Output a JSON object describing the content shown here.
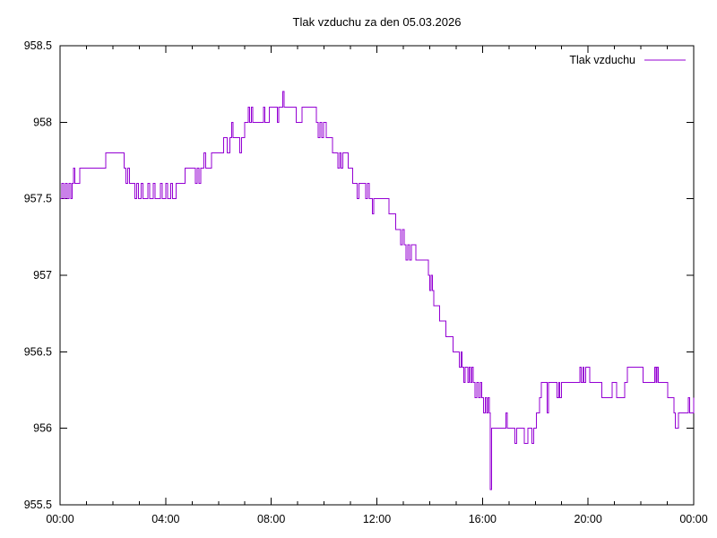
{
  "window": {
    "background_color": "#ffffff",
    "axis_color": "#000000"
  },
  "chart_data": {
    "type": "line",
    "title": "Tlak vzduchu za den 05.03.2026",
    "xlabel": "",
    "ylabel": "",
    "grid": false,
    "legend_position": "top-right-inside",
    "x_axis": {
      "unit": "time HH:MM",
      "min_minutes": 0,
      "max_minutes": 1440,
      "major_tick_minutes": 240,
      "minor_tick_minutes": 60,
      "tick_labels": [
        "00:00",
        "04:00",
        "08:00",
        "12:00",
        "16:00",
        "20:00",
        "00:00"
      ]
    },
    "y_axis": {
      "unit": "hPa",
      "min": 955.5,
      "max": 958.5,
      "tick_step": 0.5,
      "tick_labels": [
        "955.5",
        "956",
        "956.5",
        "957",
        "957.5",
        "958",
        "958.5"
      ]
    },
    "series": [
      {
        "name": "Tlak vzduchu",
        "color": "#9400d3",
        "points": [
          [
            0,
            957.5
          ],
          [
            4,
            957.6
          ],
          [
            8,
            957.5
          ],
          [
            12,
            957.6
          ],
          [
            16,
            957.5
          ],
          [
            20,
            957.6
          ],
          [
            24,
            957.5
          ],
          [
            28,
            957.6
          ],
          [
            31,
            957.7
          ],
          [
            34,
            957.6
          ],
          [
            45,
            957.7
          ],
          [
            100,
            957.7
          ],
          [
            104,
            957.8
          ],
          [
            142,
            957.8
          ],
          [
            146,
            957.7
          ],
          [
            150,
            957.6
          ],
          [
            154,
            957.7
          ],
          [
            158,
            957.6
          ],
          [
            166,
            957.6
          ],
          [
            170,
            957.5
          ],
          [
            174,
            957.6
          ],
          [
            178,
            957.5
          ],
          [
            184,
            957.6
          ],
          [
            188,
            957.5
          ],
          [
            196,
            957.5
          ],
          [
            200,
            957.6
          ],
          [
            204,
            957.5
          ],
          [
            212,
            957.6
          ],
          [
            216,
            957.5
          ],
          [
            224,
            957.5
          ],
          [
            228,
            957.6
          ],
          [
            232,
            957.5
          ],
          [
            240,
            957.6
          ],
          [
            244,
            957.5
          ],
          [
            252,
            957.6
          ],
          [
            256,
            957.5
          ],
          [
            260,
            957.5
          ],
          [
            264,
            957.6
          ],
          [
            280,
            957.6
          ],
          [
            284,
            957.7
          ],
          [
            304,
            957.7
          ],
          [
            308,
            957.6
          ],
          [
            312,
            957.7
          ],
          [
            316,
            957.6
          ],
          [
            320,
            957.7
          ],
          [
            327,
            957.8
          ],
          [
            331,
            957.7
          ],
          [
            340,
            957.7
          ],
          [
            344,
            957.8
          ],
          [
            368,
            957.8
          ],
          [
            372,
            957.9
          ],
          [
            380,
            957.8
          ],
          [
            386,
            957.9
          ],
          [
            390,
            958.0
          ],
          [
            393,
            957.9
          ],
          [
            400,
            957.9
          ],
          [
            408,
            957.8
          ],
          [
            412,
            957.9
          ],
          [
            420,
            958.0
          ],
          [
            428,
            958.1
          ],
          [
            431,
            958.0
          ],
          [
            435,
            958.1
          ],
          [
            438,
            958.0
          ],
          [
            462,
            958.1
          ],
          [
            465,
            958.0
          ],
          [
            472,
            958.0
          ],
          [
            476,
            958.1
          ],
          [
            492,
            958.1
          ],
          [
            494,
            958.0
          ],
          [
            497,
            958.1
          ],
          [
            506,
            958.2
          ],
          [
            509,
            958.1
          ],
          [
            534,
            958.1
          ],
          [
            537,
            958.0
          ],
          [
            547,
            958.0
          ],
          [
            550,
            958.1
          ],
          [
            580,
            958.1
          ],
          [
            583,
            958.0
          ],
          [
            587,
            957.9
          ],
          [
            591,
            958.0
          ],
          [
            595,
            957.9
          ],
          [
            599,
            958.0
          ],
          [
            602,
            958.0
          ],
          [
            605,
            957.9
          ],
          [
            616,
            957.9
          ],
          [
            619,
            957.8
          ],
          [
            631,
            957.7
          ],
          [
            635,
            957.8
          ],
          [
            639,
            957.7
          ],
          [
            643,
            957.8
          ],
          [
            652,
            957.8
          ],
          [
            655,
            957.7
          ],
          [
            662,
            957.7
          ],
          [
            665,
            957.6
          ],
          [
            675,
            957.5
          ],
          [
            679,
            957.6
          ],
          [
            691,
            957.6
          ],
          [
            695,
            957.5
          ],
          [
            699,
            957.6
          ],
          [
            703,
            957.5
          ],
          [
            707,
            957.5
          ],
          [
            710,
            957.4
          ],
          [
            713,
            957.5
          ],
          [
            716,
            957.5
          ],
          [
            744,
            957.5
          ],
          [
            747,
            957.4
          ],
          [
            760,
            957.4
          ],
          [
            763,
            957.3
          ],
          [
            771,
            957.3
          ],
          [
            774,
            957.2
          ],
          [
            778,
            957.3
          ],
          [
            782,
            957.2
          ],
          [
            786,
            957.1
          ],
          [
            790,
            957.2
          ],
          [
            794,
            957.1
          ],
          [
            798,
            957.2
          ],
          [
            806,
            957.2
          ],
          [
            809,
            957.1
          ],
          [
            834,
            957.1
          ],
          [
            837,
            957.0
          ],
          [
            840,
            956.9
          ],
          [
            843,
            957.0
          ],
          [
            846,
            956.9
          ],
          [
            849,
            956.8
          ],
          [
            860,
            956.8
          ],
          [
            863,
            956.7
          ],
          [
            874,
            956.7
          ],
          [
            877,
            956.6
          ],
          [
            890,
            956.6
          ],
          [
            893,
            956.5
          ],
          [
            904,
            956.5
          ],
          [
            907,
            956.4
          ],
          [
            911,
            956.5
          ],
          [
            914,
            956.4
          ],
          [
            918,
            956.3
          ],
          [
            921,
            956.4
          ],
          [
            927,
            956.3
          ],
          [
            930,
            956.4
          ],
          [
            933,
            956.3
          ],
          [
            936,
            956.4
          ],
          [
            939,
            956.3
          ],
          [
            943,
            956.2
          ],
          [
            947,
            956.3
          ],
          [
            951,
            956.2
          ],
          [
            955,
            956.3
          ],
          [
            958,
            956.2
          ],
          [
            962,
            956.1
          ],
          [
            966,
            956.2
          ],
          [
            970,
            956.1
          ],
          [
            973,
            956.2
          ],
          [
            976,
            956.1
          ],
          [
            978,
            955.6
          ],
          [
            981,
            956.0
          ],
          [
            1010,
            956.0
          ],
          [
            1013,
            956.1
          ],
          [
            1016,
            956.0
          ],
          [
            1034,
            955.9
          ],
          [
            1038,
            956.0
          ],
          [
            1055,
            955.9
          ],
          [
            1060,
            955.9
          ],
          [
            1063,
            956.0
          ],
          [
            1072,
            955.9
          ],
          [
            1076,
            956.0
          ],
          [
            1080,
            956.0
          ],
          [
            1083,
            956.1
          ],
          [
            1087,
            956.1
          ],
          [
            1090,
            956.2
          ],
          [
            1094,
            956.3
          ],
          [
            1104,
            956.3
          ],
          [
            1107,
            956.1
          ],
          [
            1110,
            956.3
          ],
          [
            1126,
            956.3
          ],
          [
            1129,
            956.2
          ],
          [
            1133,
            956.3
          ],
          [
            1136,
            956.2
          ],
          [
            1140,
            956.3
          ],
          [
            1178,
            956.3
          ],
          [
            1181,
            956.4
          ],
          [
            1184,
            956.3
          ],
          [
            1188,
            956.4
          ],
          [
            1191,
            956.3
          ],
          [
            1195,
            956.4
          ],
          [
            1200,
            956.4
          ],
          [
            1204,
            956.3
          ],
          [
            1228,
            956.3
          ],
          [
            1231,
            956.2
          ],
          [
            1252,
            956.2
          ],
          [
            1255,
            956.3
          ],
          [
            1262,
            956.3
          ],
          [
            1265,
            956.2
          ],
          [
            1280,
            956.2
          ],
          [
            1283,
            956.3
          ],
          [
            1286,
            956.3
          ],
          [
            1289,
            956.4
          ],
          [
            1322,
            956.4
          ],
          [
            1325,
            956.3
          ],
          [
            1348,
            956.3
          ],
          [
            1351,
            956.4
          ],
          [
            1354,
            956.3
          ],
          [
            1357,
            956.4
          ],
          [
            1360,
            956.3
          ],
          [
            1378,
            956.3
          ],
          [
            1381,
            956.2
          ],
          [
            1392,
            956.2
          ],
          [
            1395,
            956.1
          ],
          [
            1398,
            956.0
          ],
          [
            1402,
            956.0
          ],
          [
            1405,
            956.1
          ],
          [
            1424,
            956.1
          ],
          [
            1428,
            956.2
          ],
          [
            1431,
            956.1
          ],
          [
            1437,
            956.1
          ],
          [
            1440,
            956.2
          ]
        ]
      }
    ]
  }
}
